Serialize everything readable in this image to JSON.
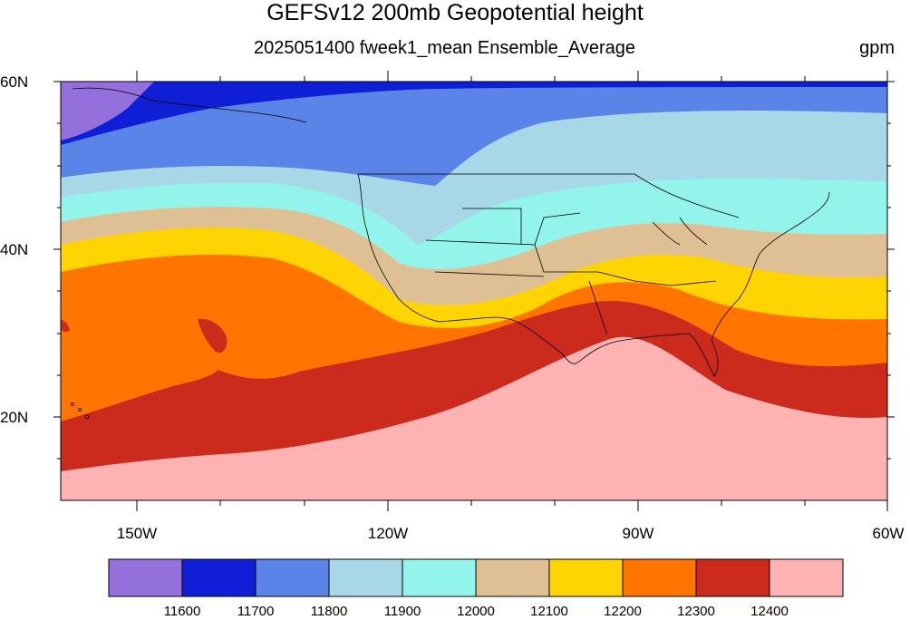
{
  "title": "GEFSv12 200mb Geopotential height",
  "subtitle": "2025051400 fweek1_mean Ensemble_Average",
  "units": "gpm",
  "lat_labels": [
    "60N",
    "40N",
    "20N"
  ],
  "lon_labels": [
    "150W",
    "120W",
    "90W",
    "60W"
  ],
  "colorbar": {
    "colors": [
      "#9370db",
      "#0f1fd6",
      "#5b84e8",
      "#a8d8e8",
      "#92f4ea",
      "#dfc094",
      "#ffd400",
      "#ff7500",
      "#cc2a1c",
      "#ffb2b2"
    ],
    "labels": [
      "11600",
      "11700",
      "11800",
      "11900",
      "12000",
      "12100",
      "12200",
      "12300",
      "12400"
    ]
  },
  "chart_data": {
    "type": "heatmap",
    "title": "GEFSv12 200mb Geopotential height",
    "subtitle": "2025051400 fweek1_mean Ensemble_Average",
    "variable": "200mb Geopotential height",
    "units": "gpm",
    "projection": "cylindrical equidistant",
    "lon_range": [
      -159,
      -60
    ],
    "lat_range": [
      10,
      60
    ],
    "contour_levels": [
      11600,
      11700,
      11800,
      11900,
      12000,
      12100,
      12200,
      12300,
      12400
    ],
    "fill_colors": [
      "#9370db",
      "#0f1fd6",
      "#5b84e8",
      "#a8d8e8",
      "#92f4ea",
      "#dfc094",
      "#ffd400",
      "#ff7500",
      "#cc2a1c",
      "#ffb2b2"
    ]
  }
}
